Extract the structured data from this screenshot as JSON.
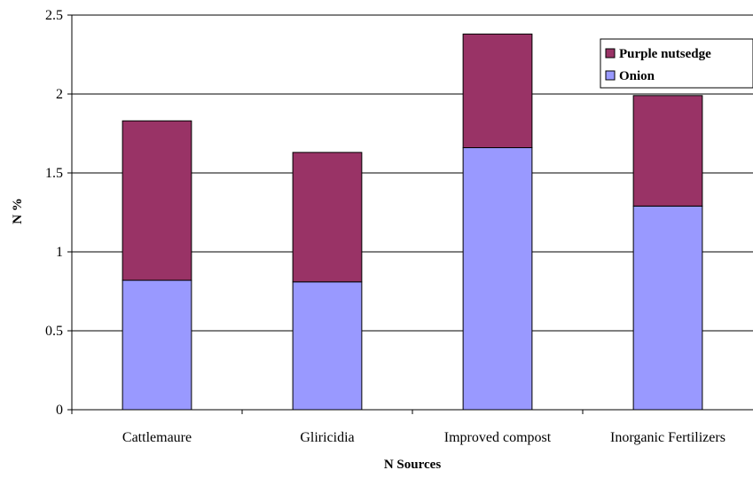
{
  "chart_data": {
    "type": "bar",
    "stacked": true,
    "categories": [
      "Cattlemaure",
      "Gliricidia",
      "Improved compost",
      "Inorganic Fertilizers"
    ],
    "series": [
      {
        "name": "Onion",
        "values": [
          0.82,
          0.81,
          1.66,
          1.29
        ],
        "color": "#9999ff"
      },
      {
        "name": "Purple nutsedge",
        "values": [
          1.01,
          0.82,
          0.72,
          0.7
        ],
        "color": "#993366"
      }
    ],
    "xlabel": "N Sources",
    "ylabel": "N %",
    "ylim": [
      0,
      2.5
    ],
    "yticks": [
      "0",
      "0.5",
      "1",
      "1.5",
      "2",
      "2.5"
    ],
    "ytick_values": [
      0,
      0.5,
      1,
      1.5,
      2,
      2.5
    ],
    "grid": true,
    "legend_position": "top-right",
    "legend_order": [
      "Purple nutsedge",
      "Onion"
    ]
  }
}
